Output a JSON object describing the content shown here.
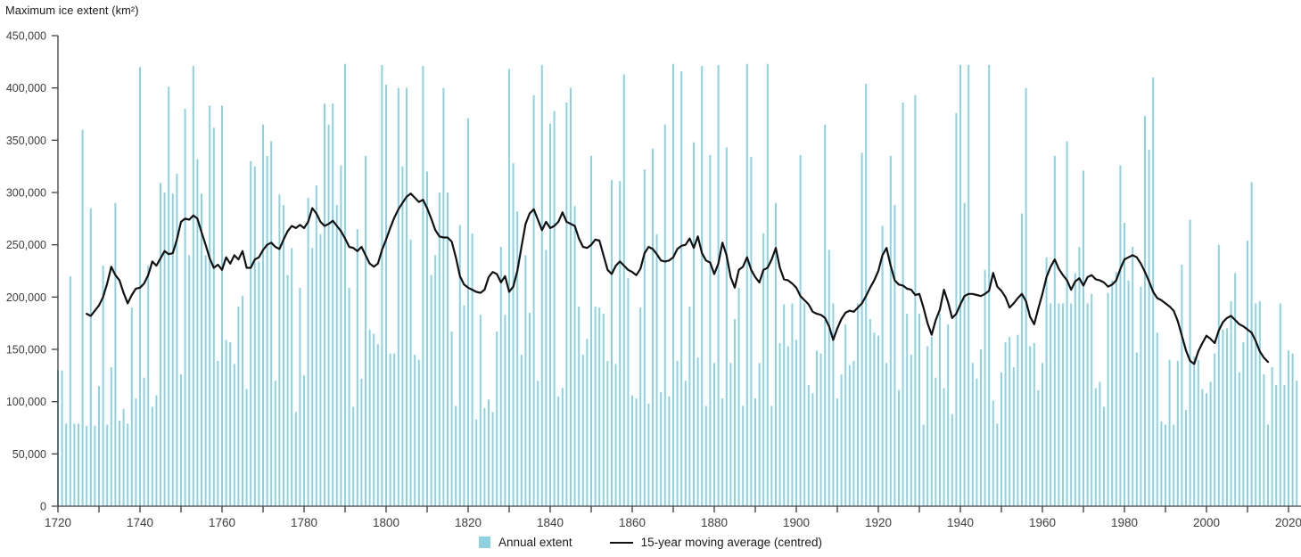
{
  "title": "Maximum ice extent (km²)",
  "colors": {
    "bar": "#8ed1e1",
    "line": "#111111",
    "axis": "#3d3d3d",
    "tick_label": "#3d3d3d",
    "text": "#1a1a1a",
    "background": "#ffffff"
  },
  "chart_data": {
    "type": "bar+line",
    "title": "Maximum ice extent (km²)",
    "xlabel": "",
    "ylabel": "Maximum ice extent (km²)",
    "ylim": [
      0,
      450000
    ],
    "ytick_interval": 50000,
    "ytick_labels": [
      "0",
      "50,000",
      "100,000",
      "150,000",
      "200,000",
      "250,000",
      "300,000",
      "350,000",
      "400,000",
      "450,000"
    ],
    "xlim": [
      1720,
      2023
    ],
    "xticks_major": [
      1720,
      1740,
      1760,
      1780,
      1800,
      1820,
      1840,
      1860,
      1880,
      1900,
      1920,
      1940,
      1960,
      1980,
      2000,
      2020
    ],
    "xticks_minor_interval": 10,
    "grid": false,
    "legend_position": "bottom",
    "series": [
      {
        "name": "Annual extent",
        "type": "bar",
        "start_year": 1720,
        "values": [
          130000,
          130000,
          79000,
          220000,
          79000,
          79000,
          360000,
          77000,
          285000,
          77000,
          115000,
          230000,
          78000,
          133000,
          290000,
          82000,
          93000,
          79000,
          190000,
          103000,
          420000,
          123000,
          230000,
          95000,
          106000,
          309000,
          300000,
          401000,
          299000,
          318000,
          126000,
          380000,
          240000,
          421000,
          332000,
          299000,
          240000,
          383000,
          362000,
          139000,
          383000,
          159000,
          157000,
          136000,
          191000,
          201000,
          112000,
          330000,
          325000,
          234000,
          365000,
          335000,
          349000,
          120000,
          298000,
          288000,
          221000,
          247000,
          90000,
          209000,
          125000,
          295000,
          247000,
          307000,
          260000,
          385000,
          365000,
          385000,
          288000,
          326000,
          423000,
          209000,
          95000,
          265000,
          122000,
          335000,
          169000,
          165000,
          155000,
          422000,
          403000,
          146000,
          146000,
          400000,
          325000,
          400000,
          255000,
          145000,
          140000,
          421000,
          320000,
          221000,
          240000,
          300000,
          400000,
          300000,
          167000,
          96000,
          269000,
          192000,
          371000,
          261000,
          83000,
          183000,
          94000,
          102000,
          90000,
          167000,
          248000,
          183000,
          418000,
          328000,
          282000,
          145000,
          240000,
          185000,
          393000,
          120000,
          422000,
          245000,
          366000,
          378000,
          105000,
          113000,
          386000,
          400000,
          287000,
          191000,
          145000,
          160000,
          335000,
          191000,
          190000,
          184000,
          139000,
          312000,
          136000,
          311000,
          413000,
          218000,
          106000,
          103000,
          190000,
          322000,
          98000,
          342000,
          260000,
          109000,
          365000,
          105000,
          423000,
          139000,
          416000,
          120000,
          191000,
          348000,
          142000,
          421000,
          96000,
          336000,
          137000,
          422000,
          103000,
          343000,
          137000,
          179000,
          209000,
          96000,
          423000,
          334000,
          103000,
          137000,
          261000,
          423000,
          96000,
          290000,
          156000,
          193000,
          153000,
          194000,
          159000,
          336000,
          194000,
          116000,
          108000,
          149000,
          146000,
          365000,
          245000,
          194000,
          103000,
          126000,
          174000,
          135000,
          139000,
          194000,
          338000,
          404000,
          179000,
          166000,
          163000,
          268000,
          137000,
          335000,
          288000,
          111000,
          386000,
          184000,
          145000,
          393000,
          184000,
          78000,
          153000,
          162000,
          123000,
          184000,
          113000,
          174000,
          88000,
          376000,
          422000,
          290000,
          422000,
          137000,
          122000,
          150000,
          226000,
          422000,
          101000,
          79000,
          128000,
          157000,
          162000,
          133000,
          164000,
          280000,
          400000,
          153000,
          156000,
          111000,
          137000,
          238000,
          194000,
          335000,
          194000,
          194000,
          349000,
          194000,
          223000,
          248000,
          321000,
          194000,
          203000,
          113000,
          119000,
          95000,
          204000,
          216000,
          224000,
          326000,
          271000,
          216000,
          248000,
          147000,
          210000,
          373000,
          341000,
          410000,
          166000,
          81000,
          78000,
          140000,
          78000,
          139000,
          231000,
          92000,
          274000,
          143000,
          140000,
          112000,
          108000,
          119000,
          146000,
          250000,
          169000,
          170000,
          196000,
          223000,
          128000,
          157000,
          254000,
          310000,
          194000,
          196000,
          126000,
          78000,
          133000,
          116000,
          194000,
          116000,
          149000,
          146000,
          120000
        ]
      },
      {
        "name": "15-year moving average (centred)",
        "type": "line",
        "start_year": 1727,
        "values": [
          184000,
          182000,
          187000,
          192000,
          200000,
          213000,
          229000,
          221000,
          216000,
          204000,
          194000,
          202000,
          208000,
          209000,
          213000,
          221000,
          234000,
          230000,
          237000,
          244000,
          241000,
          242000,
          255000,
          272000,
          275000,
          274000,
          278000,
          275000,
          262000,
          250000,
          237000,
          228000,
          231000,
          226000,
          238000,
          232000,
          240000,
          236000,
          244000,
          228000,
          228000,
          236000,
          238000,
          245000,
          250000,
          252000,
          248000,
          246000,
          255000,
          263000,
          268000,
          266000,
          269000,
          266000,
          272000,
          285000,
          280000,
          272000,
          268000,
          270000,
          273000,
          268000,
          263000,
          256000,
          248000,
          247000,
          244000,
          248000,
          240000,
          232000,
          229000,
          232000,
          245000,
          255000,
          266000,
          276000,
          284000,
          290000,
          296000,
          299000,
          295000,
          291000,
          293000,
          285000,
          275000,
          264000,
          258000,
          257000,
          257000,
          253000,
          238000,
          220000,
          212000,
          209000,
          207000,
          205000,
          204000,
          207000,
          219000,
          224000,
          222000,
          214000,
          220000,
          205000,
          210000,
          225000,
          248000,
          270000,
          280000,
          284000,
          274000,
          264000,
          272000,
          266000,
          268000,
          272000,
          281000,
          272000,
          270000,
          268000,
          256000,
          248000,
          247000,
          250000,
          255000,
          254000,
          240000,
          226000,
          222000,
          230000,
          234000,
          230000,
          226000,
          224000,
          221000,
          227000,
          242000,
          248000,
          246000,
          241000,
          235000,
          234000,
          235000,
          238000,
          246000,
          249000,
          250000,
          256000,
          247000,
          258000,
          242000,
          235000,
          233000,
          222000,
          232000,
          252000,
          240000,
          219000,
          209000,
          226000,
          229000,
          238000,
          226000,
          219000,
          214000,
          226000,
          228000,
          236000,
          247000,
          228000,
          217000,
          216000,
          213000,
          209000,
          201000,
          197000,
          193000,
          186000,
          184000,
          183000,
          180000,
          172000,
          159000,
          170000,
          179000,
          185000,
          187000,
          186000,
          190000,
          194000,
          201000,
          209000,
          216000,
          225000,
          240000,
          247000,
          230000,
          216000,
          212000,
          211000,
          208000,
          207000,
          202000,
          203000,
          190000,
          175000,
          164000,
          178000,
          188000,
          207000,
          195000,
          180000,
          184000,
          193000,
          201000,
          203000,
          203000,
          202000,
          201000,
          203000,
          206000,
          223000,
          210000,
          206000,
          200000,
          190000,
          194000,
          199000,
          203000,
          196000,
          181000,
          174000,
          189000,
          203000,
          219000,
          229000,
          236000,
          227000,
          221000,
          216000,
          207000,
          215000,
          218000,
          211000,
          219000,
          221000,
          217000,
          216000,
          214000,
          210000,
          212000,
          216000,
          227000,
          236000,
          238000,
          240000,
          238000,
          232000,
          224000,
          215000,
          205000,
          199000,
          197000,
          194000,
          191000,
          187000,
          177000,
          163000,
          149000,
          139000,
          136000,
          148000,
          156000,
          163000,
          160000,
          156000,
          168000,
          176000,
          180000,
          182000,
          178000,
          174000,
          172000,
          169000,
          166000,
          158000,
          148000,
          142000,
          138000
        ]
      }
    ]
  }
}
